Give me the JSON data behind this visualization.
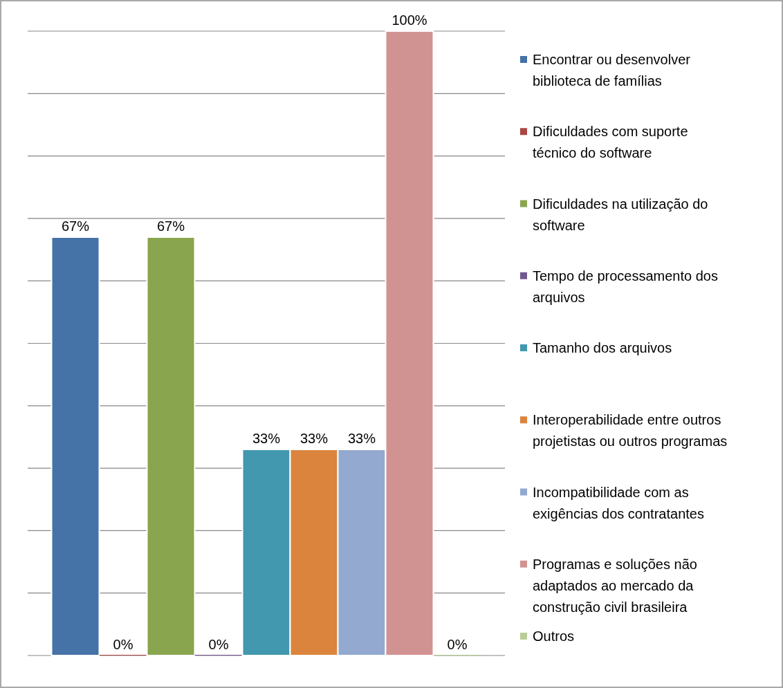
{
  "chart_data": {
    "type": "bar",
    "categories": [
      null
    ],
    "series": [
      {
        "name": "Encontrar ou desenvolver biblioteca de famílias",
        "color": "#4572a7",
        "values": [
          67
        ],
        "value_labels": [
          "67%"
        ]
      },
      {
        "name": "Dificuldades com suporte técnico do software",
        "color": "#aa4643",
        "values": [
          0
        ],
        "value_labels": [
          "0%"
        ]
      },
      {
        "name": "Dificuldades na utilização do software",
        "color": "#89a54e",
        "values": [
          67
        ],
        "value_labels": [
          "67%"
        ]
      },
      {
        "name": "Tempo de processamento dos arquivos",
        "color": "#71588f",
        "values": [
          0
        ],
        "value_labels": [
          "0%"
        ]
      },
      {
        "name": "Tamanho dos arquivos",
        "color": "#4198af",
        "values": [
          33
        ],
        "value_labels": [
          "33%"
        ]
      },
      {
        "name": "Interoperabilidade entre outros projetistas ou outros programas",
        "color": "#db843d",
        "values": [
          33
        ],
        "value_labels": [
          "33%"
        ]
      },
      {
        "name": "Incompatibilidade com as exigências dos contratantes",
        "color": "#93a9cf",
        "values": [
          33
        ],
        "value_labels": [
          "33%"
        ]
      },
      {
        "name": "Programas e soluções não adaptados ao mercado da construção civil brasileira",
        "color": "#d19392",
        "values": [
          100
        ],
        "value_labels": [
          "100%"
        ]
      },
      {
        "name": "Outros",
        "color": "#b9cd96",
        "values": [
          0
        ],
        "value_labels": [
          "0%"
        ]
      }
    ],
    "ylim": [
      0,
      100
    ],
    "yticks": [
      {
        "value": 0,
        "label": null
      },
      {
        "value": 10,
        "label": null
      },
      {
        "value": 20,
        "label": null
      },
      {
        "value": 30,
        "label": null
      },
      {
        "value": 40,
        "label": null
      },
      {
        "value": 50,
        "label": null
      },
      {
        "value": 60,
        "label": null
      },
      {
        "value": 70,
        "label": null
      },
      {
        "value": 80,
        "label": null
      },
      {
        "value": 90,
        "label": null
      },
      {
        "value": 100,
        "label": null
      }
    ],
    "grid": "y",
    "legend": "right"
  }
}
